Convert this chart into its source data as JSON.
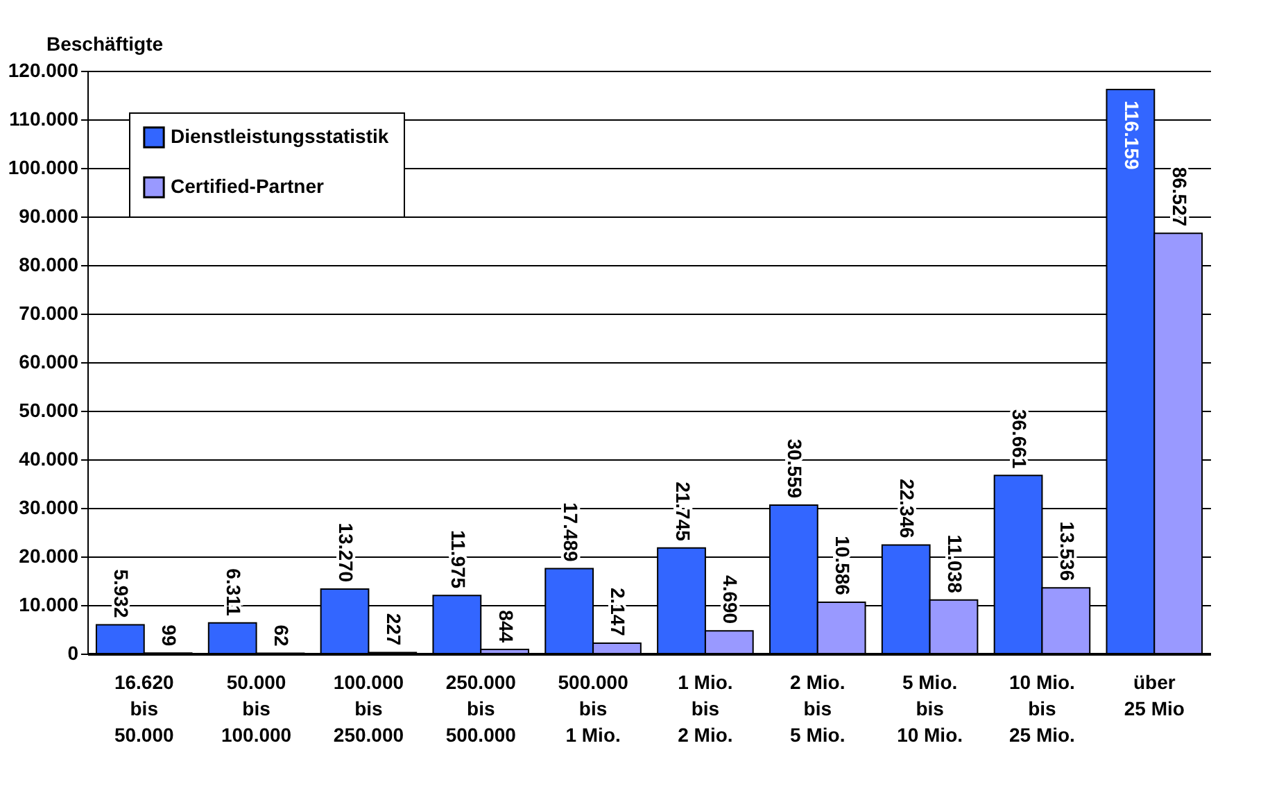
{
  "chart_data": {
    "type": "bar",
    "ylabel": "Beschäftigte",
    "categories": [
      "16.620\nbis\n50.000",
      "50.000\nbis\n100.000",
      "100.000\nbis\n250.000",
      "250.000\nbis\n500.000",
      "500.000\nbis\n1 Mio.",
      "1 Mio.\nbis\n2 Mio.",
      "2 Mio.\nbis\n5 Mio.",
      "5 Mio.\nbis\n10 Mio.",
      "10 Mio.\nbis\n25 Mio.",
      "über\n25 Mio"
    ],
    "series": [
      {
        "name": "Dienstleistungsstatistik",
        "color": "#3366ff",
        "values": [
          5932,
          6311,
          13270,
          11975,
          17489,
          21745,
          30559,
          22346,
          36661,
          116159
        ],
        "value_labels": [
          "5.932",
          "6.311",
          "13.270",
          "11.975",
          "17.489",
          "21.745",
          "30.559",
          "22.346",
          "36.661",
          "116.159"
        ]
      },
      {
        "name": "Certified-Partner",
        "color": "#9999ff",
        "values": [
          99,
          62,
          227,
          844,
          2147,
          4690,
          10586,
          11038,
          13536,
          86527
        ],
        "value_labels": [
          "99",
          "62",
          "227",
          "844",
          "2.147",
          "4.690",
          "10.586",
          "11.038",
          "13.536",
          "86.527"
        ]
      }
    ],
    "ylim": [
      0,
      120000
    ],
    "yticks": [
      0,
      {
        "value": 10000,
        "label": "10.000"
      },
      {
        "value": 20000,
        "label": "20.000"
      },
      {
        "value": 30000,
        "label": "30.000"
      },
      {
        "value": 40000,
        "label": "40.000"
      },
      {
        "value": 50000,
        "label": "50.000"
      },
      {
        "value": 60000,
        "label": "60.000"
      },
      {
        "value": 70000,
        "label": "70.000"
      },
      {
        "value": 80000,
        "label": "80.000"
      },
      {
        "value": 90000,
        "label": "90.000"
      },
      {
        "value": 100000,
        "label": "100.000"
      },
      {
        "value": 110000,
        "label": "110.000"
      },
      {
        "value": 120000,
        "label": "120.000"
      }
    ],
    "grid": "y",
    "legend": "top left"
  }
}
